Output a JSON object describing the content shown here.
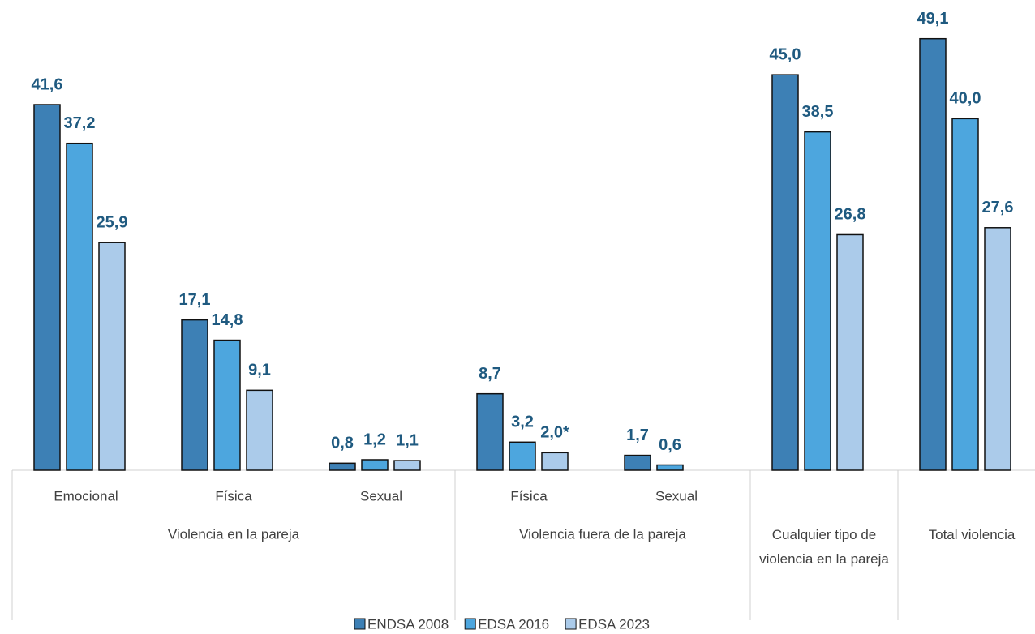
{
  "chart_data": {
    "type": "bar",
    "groups": [
      {
        "label": "Violencia en la pareja",
        "categories": [
          "Emocional",
          "Física",
          "Sexual"
        ]
      },
      {
        "label": "Violencia fuera de la pareja",
        "categories": [
          "Física",
          "Sexual"
        ]
      },
      {
        "label": "Cualquier tipo de violencia en la pareja",
        "categories": [
          null
        ]
      },
      {
        "label": "Total violencia",
        "categories": [
          null
        ]
      }
    ],
    "series": [
      {
        "name": "ENDSA 2008",
        "color": "#3d80b5",
        "values": [
          41.6,
          17.1,
          0.8,
          8.7,
          1.7,
          45.0,
          49.1
        ],
        "value_labels": [
          "41,6",
          "17,1",
          "0,8",
          "8,7",
          "1,7",
          "45,0",
          "49,1"
        ]
      },
      {
        "name": "EDSA 2016",
        "color": "#4da6de",
        "values": [
          37.2,
          14.8,
          1.2,
          3.2,
          0.6,
          38.5,
          40.0
        ],
        "value_labels": [
          "37,2",
          "14,8",
          "1,2",
          "3,2",
          "0,6",
          "38,5",
          "40,0"
        ]
      },
      {
        "name": "EDSA 2023",
        "color": "#abcbea",
        "values": [
          25.9,
          9.1,
          1.1,
          2.0,
          null,
          26.8,
          27.6
        ],
        "value_labels": [
          "25,9",
          "9,1",
          "1,1",
          "2,0*",
          null,
          "26,8",
          "27,6"
        ]
      }
    ],
    "ylim": [
      0,
      53.5
    ]
  }
}
